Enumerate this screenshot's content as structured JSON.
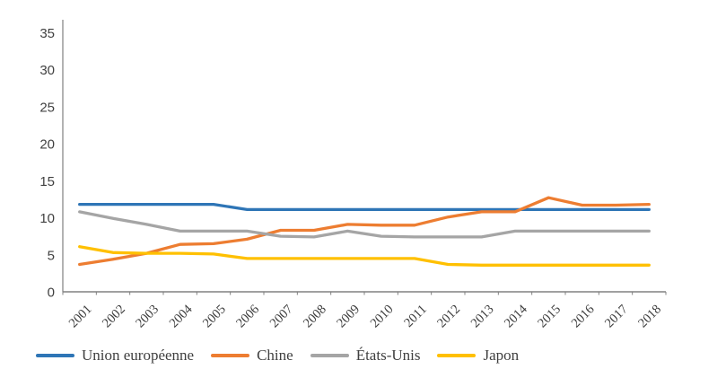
{
  "chart_data": {
    "type": "line",
    "x": [
      "2001",
      "2002",
      "2003",
      "2004",
      "2005",
      "2006",
      "2007",
      "2008",
      "2009",
      "2010",
      "2011",
      "2012",
      "2013",
      "2014",
      "2015",
      "2016",
      "2017",
      "2018"
    ],
    "series": [
      {
        "name": "Union européenne",
        "color": "#2E75B6",
        "values": [
          11.8,
          11.8,
          11.8,
          11.8,
          11.8,
          11.1,
          11.1,
          11.1,
          11.1,
          11.1,
          11.1,
          11.1,
          11.1,
          11.1,
          11.1,
          11.1,
          11.1,
          11.1
        ]
      },
      {
        "name": "Chine",
        "color": "#ED7D31",
        "values": [
          3.7,
          4.4,
          5.2,
          6.4,
          6.5,
          7.1,
          8.3,
          8.3,
          9.1,
          9.0,
          9.0,
          10.1,
          10.8,
          10.8,
          12.7,
          11.7,
          11.7,
          11.8
        ]
      },
      {
        "name": "États-Unis",
        "color": "#A5A5A5",
        "values": [
          10.8,
          9.9,
          9.1,
          8.2,
          8.2,
          8.2,
          7.5,
          7.4,
          8.2,
          7.5,
          7.4,
          7.4,
          7.4,
          8.2,
          8.2,
          8.2,
          8.2,
          8.2
        ]
      },
      {
        "name": "Japon",
        "color": "#FFC000",
        "values": [
          6.1,
          5.3,
          5.2,
          5.2,
          5.1,
          4.5,
          4.5,
          4.5,
          4.5,
          4.5,
          4.5,
          3.7,
          3.6,
          3.6,
          3.6,
          3.6,
          3.6,
          3.6
        ]
      }
    ],
    "title": "",
    "xlabel": "",
    "ylabel": "",
    "ylim": [
      0,
      35
    ],
    "ytick_step": 5,
    "grid": false,
    "legend_position": "bottom",
    "axis_color": "#808080",
    "label_color": "#404040"
  }
}
